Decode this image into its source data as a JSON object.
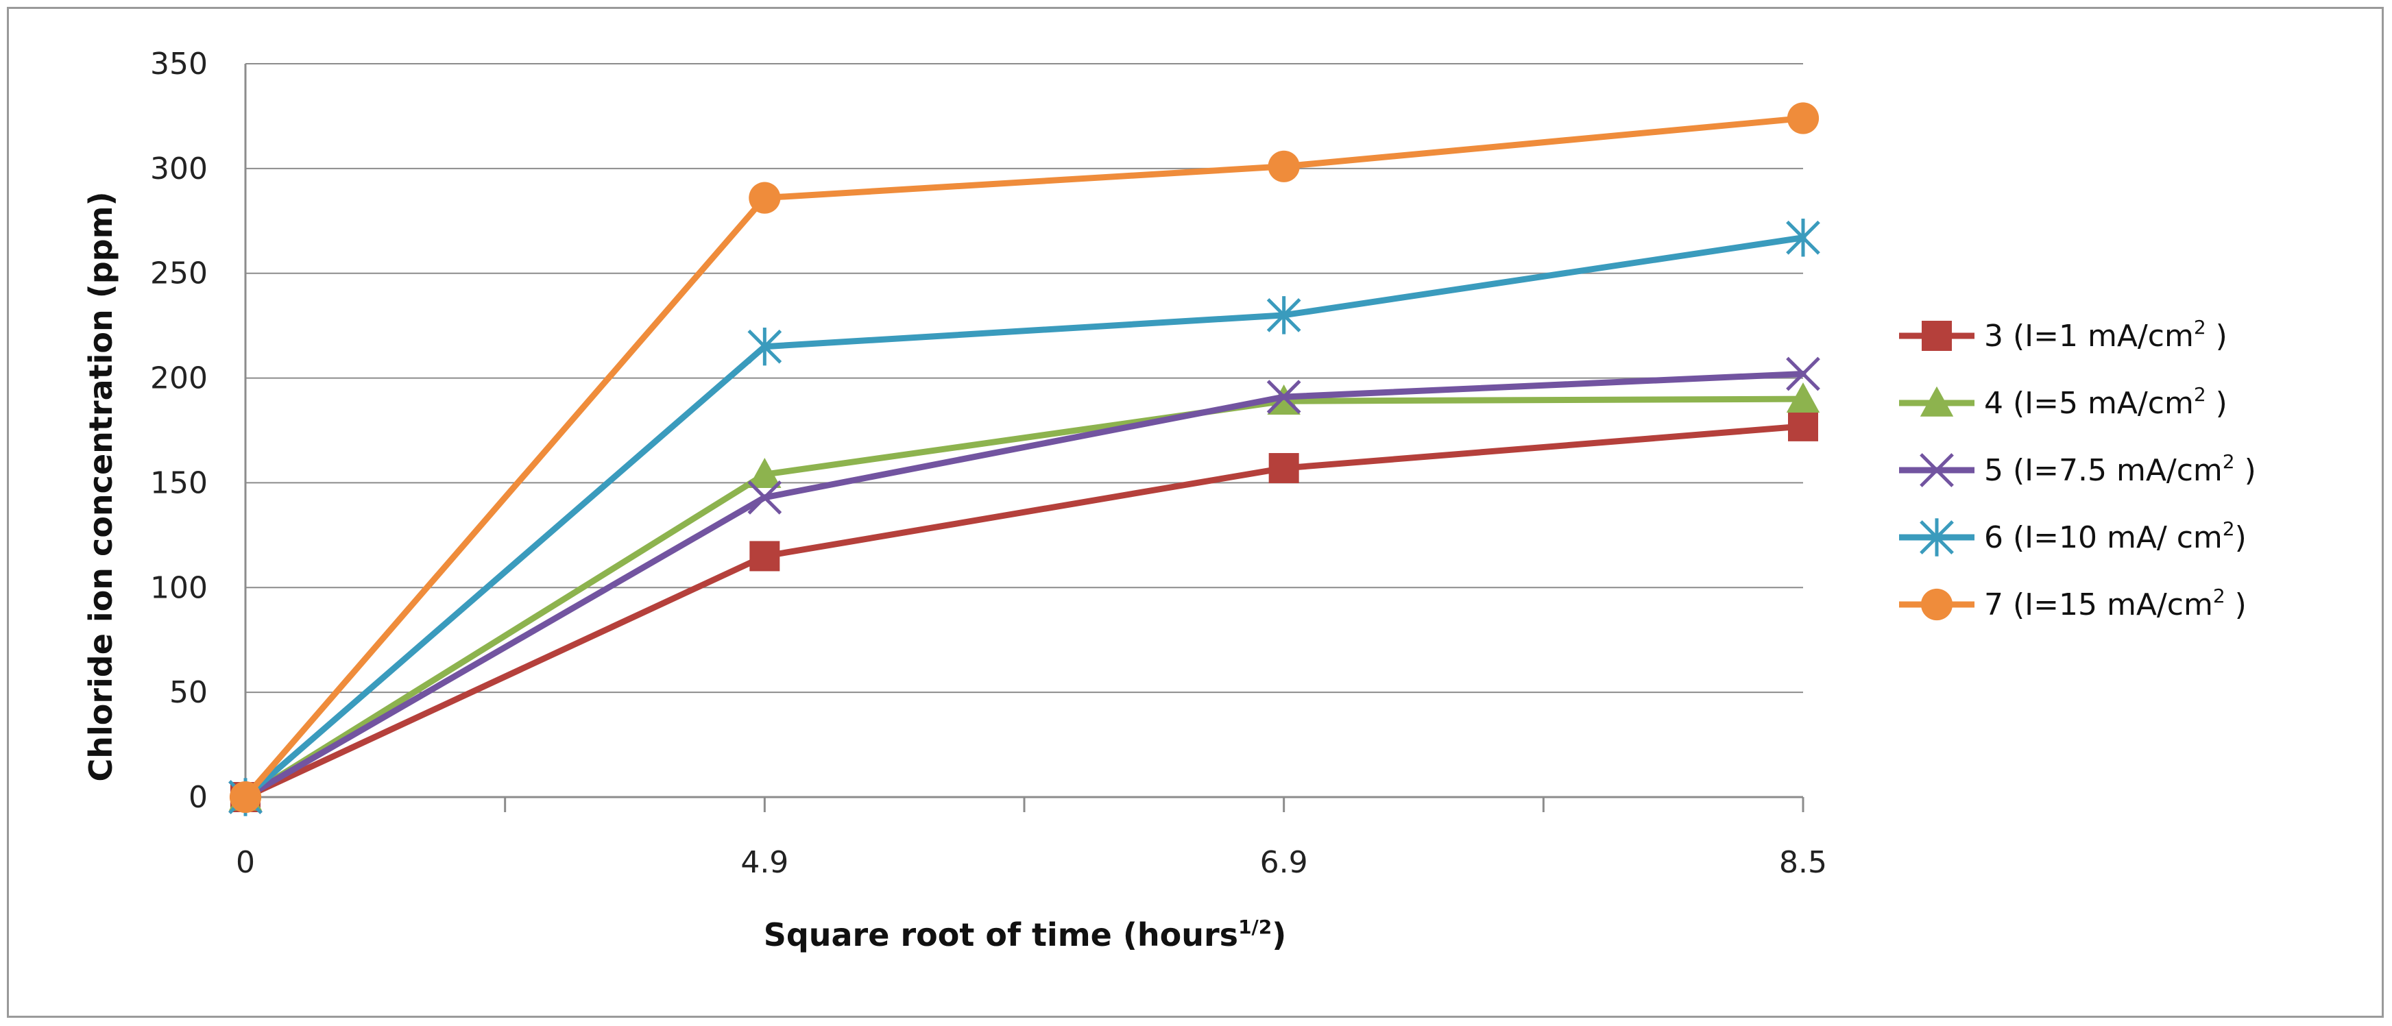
{
  "chart_data": {
    "type": "line",
    "categories": [
      "0",
      "4.9",
      "6.9",
      "8.5"
    ],
    "xlabel": {
      "text": "Square root of time (hours",
      "sup": "1/2",
      "suffix": ")"
    },
    "ylabel": "Chloride ion concentration (ppm)",
    "ylim": [
      0,
      350
    ],
    "yticks": [
      0,
      50,
      100,
      150,
      200,
      250,
      300,
      350
    ],
    "grid": true,
    "legend_position": "right",
    "series": [
      {
        "name": "3 (I=1 mA/cm",
        "sup": "2",
        "suffix": " )",
        "color": "#b5403b",
        "marker": "square",
        "values": [
          0,
          115,
          157,
          177
        ]
      },
      {
        "name": "4 (I=5 mA/cm",
        "sup": "2",
        "suffix": " )",
        "color": "#8db34e",
        "marker": "triangle",
        "values": [
          0,
          154,
          189,
          190
        ]
      },
      {
        "name": "5 (I=7.5 mA/cm",
        "sup": "2",
        "suffix": " )",
        "color": "#7254a0",
        "marker": "x",
        "values": [
          0,
          143,
          191,
          202
        ]
      },
      {
        "name": "6 (I=10 mA/ cm",
        "sup": "2",
        "suffix": ")",
        "color": "#3a9bbd",
        "marker": "star",
        "values": [
          0,
          215,
          230,
          267
        ]
      },
      {
        "name": "7 (I=15 mA/cm",
        "sup": "2",
        "suffix": " )",
        "color": "#ef8c3b",
        "marker": "circle",
        "values": [
          0,
          286,
          301,
          324
        ]
      }
    ]
  }
}
